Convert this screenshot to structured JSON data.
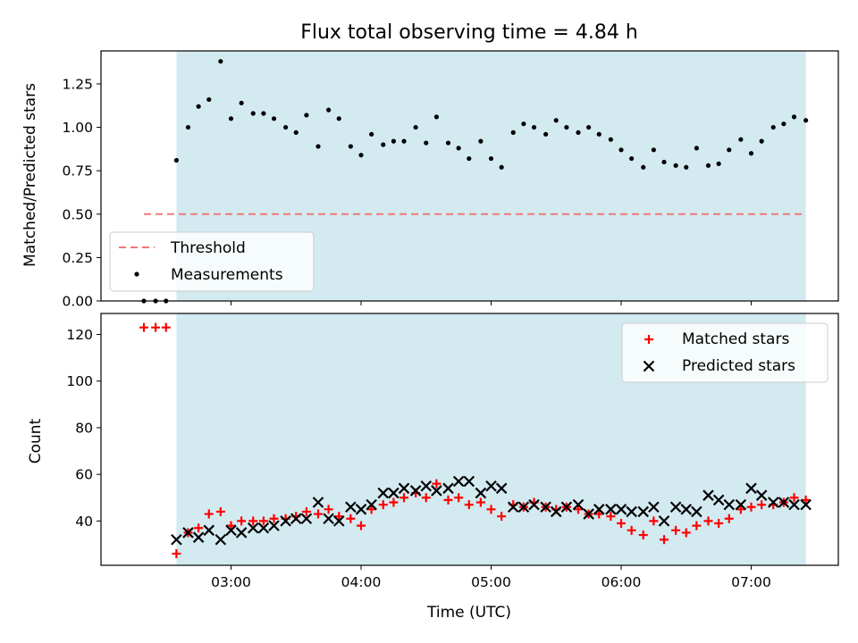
{
  "title": "Flux total observing time = 4.84 h",
  "xlabel": "Time (UTC)",
  "x_ticks": [
    "03:00",
    "04:00",
    "05:00",
    "06:00",
    "07:00"
  ],
  "x_tick_values": [
    3.0,
    4.0,
    5.0,
    6.0,
    7.0
  ],
  "colors": {
    "shade": "#d3eaf0",
    "threshold": "#f07878",
    "measurement": "#000000",
    "matched": "#ff0000",
    "predicted": "#000000"
  },
  "chart_data": [
    {
      "type": "scatter",
      "ylabel": "Matched/Predicted stars",
      "xlim": [
        2.0,
        7.67
      ],
      "ylim": [
        0.0,
        1.44
      ],
      "yticks": [
        "0.00",
        "0.25",
        "0.50",
        "0.75",
        "1.00",
        "1.25"
      ],
      "ytick_values": [
        0.0,
        0.25,
        0.5,
        0.75,
        1.0,
        1.25
      ],
      "shaded_span": [
        2.58,
        7.42
      ],
      "threshold": {
        "name": "Threshold",
        "value": 0.5,
        "x": [
          2.33,
          7.42
        ]
      },
      "legend": {
        "position": "lower-left",
        "entries": [
          "Threshold",
          "Measurements"
        ]
      },
      "series": [
        {
          "name": "Measurements",
          "points": [
            [
              2.33,
              0.0
            ],
            [
              2.42,
              0.0
            ],
            [
              2.5,
              0.0
            ],
            [
              2.58,
              0.81
            ],
            [
              2.67,
              1.0
            ],
            [
              2.75,
              1.12
            ],
            [
              2.83,
              1.16
            ],
            [
              2.92,
              1.38
            ],
            [
              3.0,
              1.05
            ],
            [
              3.08,
              1.14
            ],
            [
              3.17,
              1.08
            ],
            [
              3.25,
              1.08
            ],
            [
              3.33,
              1.05
            ],
            [
              3.42,
              1.0
            ],
            [
              3.5,
              0.97
            ],
            [
              3.58,
              1.07
            ],
            [
              3.67,
              0.89
            ],
            [
              3.75,
              1.1
            ],
            [
              3.83,
              1.05
            ],
            [
              3.92,
              0.89
            ],
            [
              4.0,
              0.84
            ],
            [
              4.08,
              0.96
            ],
            [
              4.17,
              0.9
            ],
            [
              4.25,
              0.92
            ],
            [
              4.33,
              0.92
            ],
            [
              4.42,
              1.0
            ],
            [
              4.5,
              0.91
            ],
            [
              4.58,
              1.06
            ],
            [
              4.67,
              0.91
            ],
            [
              4.75,
              0.88
            ],
            [
              4.83,
              0.82
            ],
            [
              4.92,
              0.92
            ],
            [
              5.0,
              0.82
            ],
            [
              5.08,
              0.77
            ],
            [
              5.17,
              0.97
            ],
            [
              5.25,
              1.02
            ],
            [
              5.33,
              1.0
            ],
            [
              5.42,
              0.96
            ],
            [
              5.5,
              1.04
            ],
            [
              5.58,
              1.0
            ],
            [
              5.67,
              0.97
            ],
            [
              5.75,
              1.0
            ],
            [
              5.83,
              0.96
            ],
            [
              5.92,
              0.93
            ],
            [
              6.0,
              0.87
            ],
            [
              6.08,
              0.82
            ],
            [
              6.17,
              0.77
            ],
            [
              6.25,
              0.87
            ],
            [
              6.33,
              0.8
            ],
            [
              6.42,
              0.78
            ],
            [
              6.5,
              0.77
            ],
            [
              6.58,
              0.88
            ],
            [
              6.67,
              0.78
            ],
            [
              6.75,
              0.79
            ],
            [
              6.83,
              0.87
            ],
            [
              6.92,
              0.93
            ],
            [
              7.0,
              0.85
            ],
            [
              7.08,
              0.92
            ],
            [
              7.17,
              1.0
            ],
            [
              7.25,
              1.02
            ],
            [
              7.33,
              1.06
            ],
            [
              7.42,
              1.04
            ]
          ]
        }
      ]
    },
    {
      "type": "scatter",
      "ylabel": "Count",
      "xlim": [
        2.0,
        7.67
      ],
      "ylim": [
        21,
        129
      ],
      "yticks": [
        "40",
        "60",
        "80",
        "100",
        "120"
      ],
      "ytick_values": [
        40,
        60,
        80,
        100,
        120
      ],
      "shaded_span": [
        2.58,
        7.42
      ],
      "legend": {
        "position": "top-right",
        "entries": [
          "Matched stars",
          "Predicted stars"
        ]
      },
      "x": [
        2.33,
        2.42,
        2.5,
        2.58,
        2.67,
        2.75,
        2.83,
        2.92,
        3.0,
        3.08,
        3.17,
        3.25,
        3.33,
        3.42,
        3.5,
        3.58,
        3.67,
        3.75,
        3.83,
        3.92,
        4.0,
        4.08,
        4.17,
        4.25,
        4.33,
        4.42,
        4.5,
        4.58,
        4.67,
        4.75,
        4.83,
        4.92,
        5.0,
        5.08,
        5.17,
        5.25,
        5.33,
        5.42,
        5.5,
        5.58,
        5.67,
        5.75,
        5.83,
        5.92,
        6.0,
        6.08,
        6.17,
        6.25,
        6.33,
        6.42,
        6.5,
        6.58,
        6.67,
        6.75,
        6.83,
        6.92,
        7.0,
        7.08,
        7.17,
        7.25,
        7.33,
        7.42
      ],
      "series": [
        {
          "name": "Matched stars",
          "marker": "plus",
          "values": [
            123,
            123,
            123,
            26,
            35,
            37,
            43,
            44,
            38,
            40,
            40,
            40,
            41,
            41,
            42,
            44,
            43,
            45,
            42,
            41,
            38,
            45,
            47,
            48,
            50,
            52,
            50,
            56,
            49,
            50,
            47,
            48,
            45,
            42,
            47,
            46,
            48,
            46,
            45,
            46,
            45,
            43,
            43,
            42,
            39,
            36,
            34,
            40,
            32,
            36,
            35,
            38,
            40,
            39,
            41,
            45,
            46,
            47,
            47,
            48,
            50,
            49
          ]
        },
        {
          "name": "Predicted stars",
          "marker": "x",
          "values": [
            null,
            null,
            null,
            32,
            35,
            33,
            36,
            32,
            36,
            35,
            37,
            37,
            38,
            40,
            41,
            41,
            48,
            41,
            40,
            46,
            45,
            47,
            52,
            52,
            54,
            53,
            55,
            53,
            54,
            57,
            57,
            52,
            55,
            54,
            46,
            46,
            47,
            46,
            44,
            46,
            47,
            43,
            45,
            45,
            45,
            44,
            44,
            46,
            40,
            46,
            45,
            44,
            51,
            49,
            47,
            47,
            54,
            51,
            48,
            48,
            47,
            47
          ]
        }
      ]
    }
  ]
}
